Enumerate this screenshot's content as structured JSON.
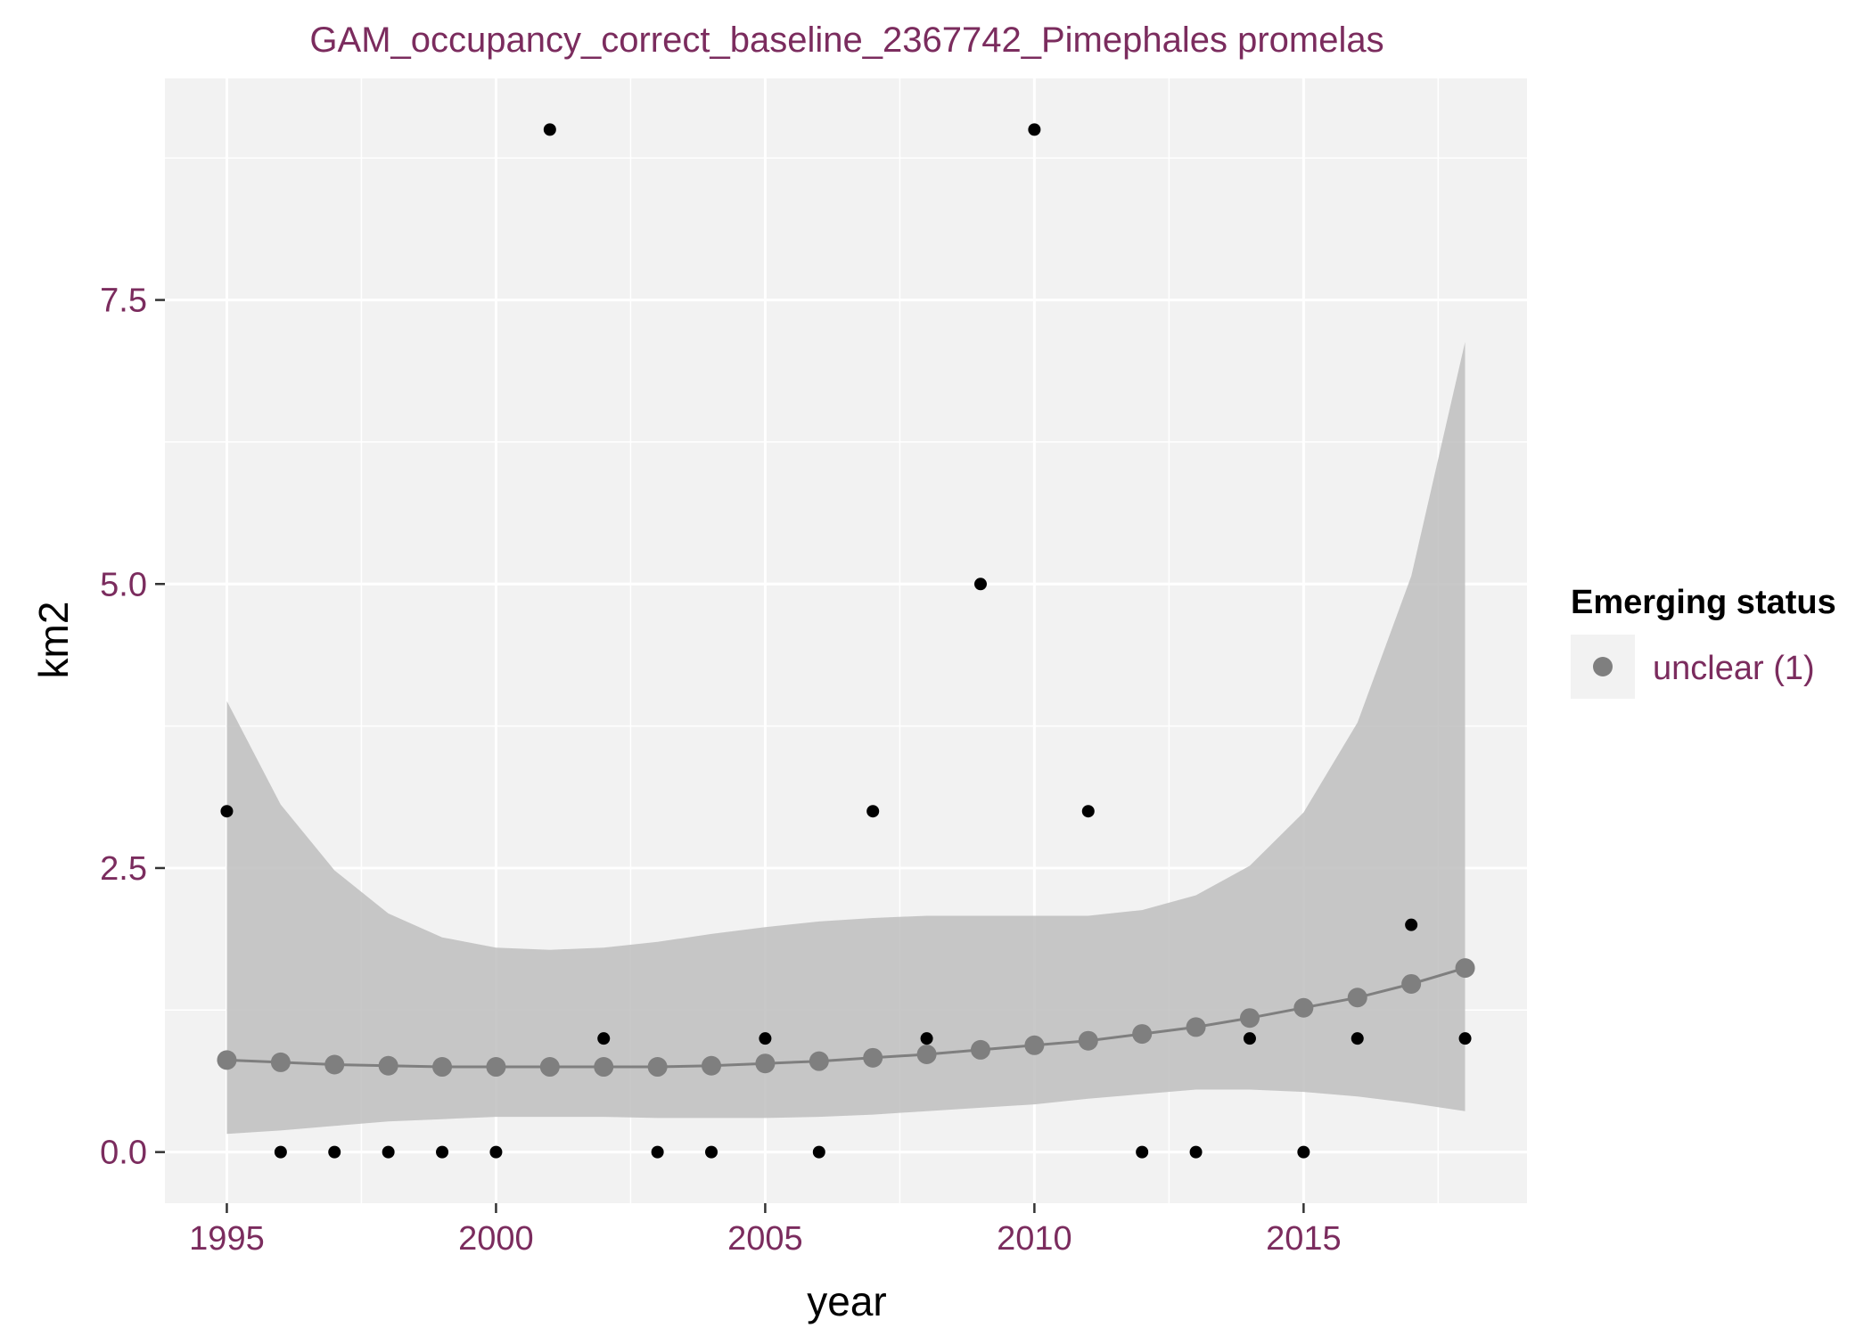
{
  "chart_data": {
    "type": "scatter",
    "title": "GAM_occupancy_correct_baseline_2367742_Pimephales promelas",
    "xlabel": "year",
    "ylabel": "km2",
    "xlim": [
      1993.85,
      2019.15
    ],
    "ylim": [
      -0.45,
      9.45
    ],
    "x_ticks": [
      1995,
      2000,
      2005,
      2010,
      2015
    ],
    "x_tick_labels": [
      "1995",
      "2000",
      "2005",
      "2010",
      "2015"
    ],
    "y_ticks": [
      0,
      2.5,
      5,
      7.5
    ],
    "y_tick_labels": [
      "0.0",
      "2.5",
      "5.0",
      "7.5"
    ],
    "grid": true,
    "legend": {
      "title": "Emerging status",
      "position": "right",
      "entries": [
        "unclear (1)"
      ]
    },
    "observed": {
      "x": [
        1995,
        1996,
        1997,
        1998,
        1999,
        2000,
        2001,
        2002,
        2003,
        2004,
        2005,
        2006,
        2007,
        2008,
        2009,
        2010,
        2011,
        2012,
        2013,
        2014,
        2015,
        2016,
        2017,
        2018
      ],
      "y": [
        3,
        0,
        0,
        0,
        0,
        0,
        9,
        1,
        0,
        0,
        1,
        0,
        3,
        1,
        5,
        9,
        3,
        0,
        0,
        1,
        0,
        1,
        2,
        1
      ]
    },
    "series": [
      {
        "name": "unclear (1)",
        "x": [
          1995,
          1996,
          1997,
          1998,
          1999,
          2000,
          2001,
          2002,
          2003,
          2004,
          2005,
          2006,
          2007,
          2008,
          2009,
          2010,
          2011,
          2012,
          2013,
          2014,
          2015,
          2016,
          2017,
          2018
        ],
        "y": [
          0.81,
          0.79,
          0.77,
          0.76,
          0.75,
          0.75,
          0.75,
          0.75,
          0.75,
          0.76,
          0.78,
          0.8,
          0.83,
          0.86,
          0.9,
          0.94,
          0.98,
          1.04,
          1.1,
          1.18,
          1.27,
          1.36,
          1.48,
          1.62
        ],
        "lower": [
          0.16,
          0.19,
          0.23,
          0.27,
          0.29,
          0.31,
          0.31,
          0.31,
          0.3,
          0.3,
          0.3,
          0.31,
          0.33,
          0.36,
          0.39,
          0.42,
          0.47,
          0.51,
          0.55,
          0.55,
          0.53,
          0.49,
          0.43,
          0.36
        ],
        "upper": [
          3.97,
          3.06,
          2.48,
          2.1,
          1.89,
          1.8,
          1.78,
          1.8,
          1.85,
          1.92,
          1.98,
          2.03,
          2.06,
          2.08,
          2.08,
          2.08,
          2.08,
          2.13,
          2.26,
          2.52,
          2.99,
          3.78,
          5.07,
          7.13
        ]
      }
    ],
    "colors": {
      "title": "#7b2c5e",
      "tick_labels": "#7b2c5e",
      "legend_label": "#7b2c5e",
      "panel_background": "#f2f2f2",
      "gridline": "#ffffff",
      "ribbon": "#bebebe",
      "fit": "#7f7f7f",
      "observed": "#000000"
    }
  }
}
